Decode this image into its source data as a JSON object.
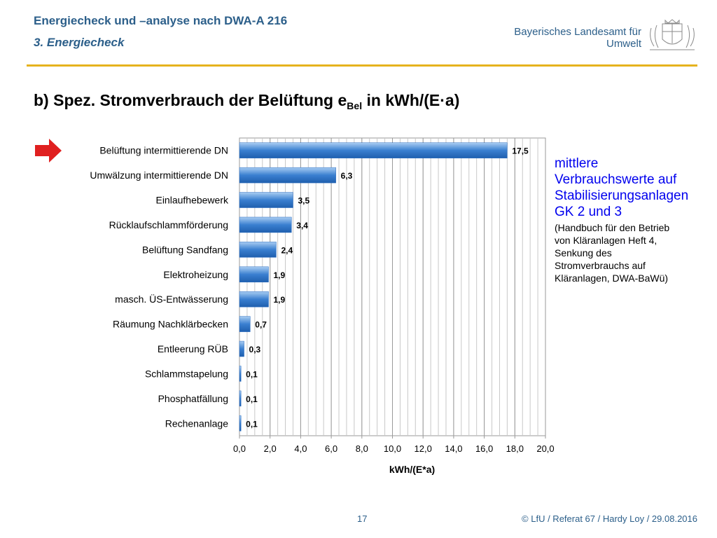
{
  "header": {
    "title": "Energiecheck und –analyse nach DWA-A 216",
    "subtitle": "3. Energiecheck",
    "org_line1": "Bayerisches Landesamt für",
    "org_line2": "Umwelt"
  },
  "slide": {
    "title_prefix": "b)  Spez. Stromverbrauch der Belüftung e",
    "title_sub": "Bel",
    "title_suffix": " in kWh/(E·a)"
  },
  "chart_data": {
    "type": "bar",
    "orientation": "horizontal",
    "categories": [
      "Belüftung intermittierende DN",
      "Umwälzung intermittierende DN",
      "Einlaufhebewerk",
      "Rücklaufschlammförderung",
      "Belüftung Sandfang",
      "Elektroheizung",
      "masch. ÜS-Entwässerung",
      "Räumung Nachklärbecken",
      "Entleerung RÜB",
      "Schlammstapelung",
      "Phosphatfällung",
      "Rechenanlage"
    ],
    "values": [
      17.5,
      6.3,
      3.5,
      3.4,
      2.4,
      1.9,
      1.9,
      0.7,
      0.3,
      0.1,
      0.1,
      0.1
    ],
    "data_labels": [
      "17,5",
      "6,3",
      "3,5",
      "3,4",
      "2,4",
      "1,9",
      "1,9",
      "0,7",
      "0,3",
      "0,1",
      "0,1",
      "0,1"
    ],
    "xlim": [
      0,
      20
    ],
    "x_ticks": [
      0,
      2,
      4,
      6,
      8,
      10,
      12,
      14,
      16,
      18,
      20
    ],
    "x_tick_labels": [
      "0,0",
      "2,0",
      "4,0",
      "6,0",
      "8,0",
      "10,0",
      "12,0",
      "14,0",
      "16,0",
      "18,0",
      "20,0"
    ],
    "minor_grid_step": 0.5,
    "xlabel": "kWh/(E*a)",
    "grid": true,
    "bar_color": "#3a7fd0",
    "highlight_index": 0,
    "highlight_arrow_color": "#e02020"
  },
  "note": {
    "line1": "mittlere",
    "line2": "Verbrauchswerte auf",
    "line3": "Stabilisierungsanlagen",
    "line4": "GK 2 und 3",
    "small1": "(Handbuch für den Betrieb",
    "small2": "von Kläranlagen Heft 4,",
    "small3": "Senkung des",
    "small4": "Stromverbrauchs auf",
    "small5": "Kläranlagen, DWA-BaWü)"
  },
  "footer": {
    "page": "17",
    "credit": "© LfU / Referat 67 / Hardy Loy / 29.08.2016"
  },
  "colors": {
    "header_text": "#2c5f8a",
    "gold_rule": "#e6b31e",
    "note_text": "#0000ee"
  }
}
